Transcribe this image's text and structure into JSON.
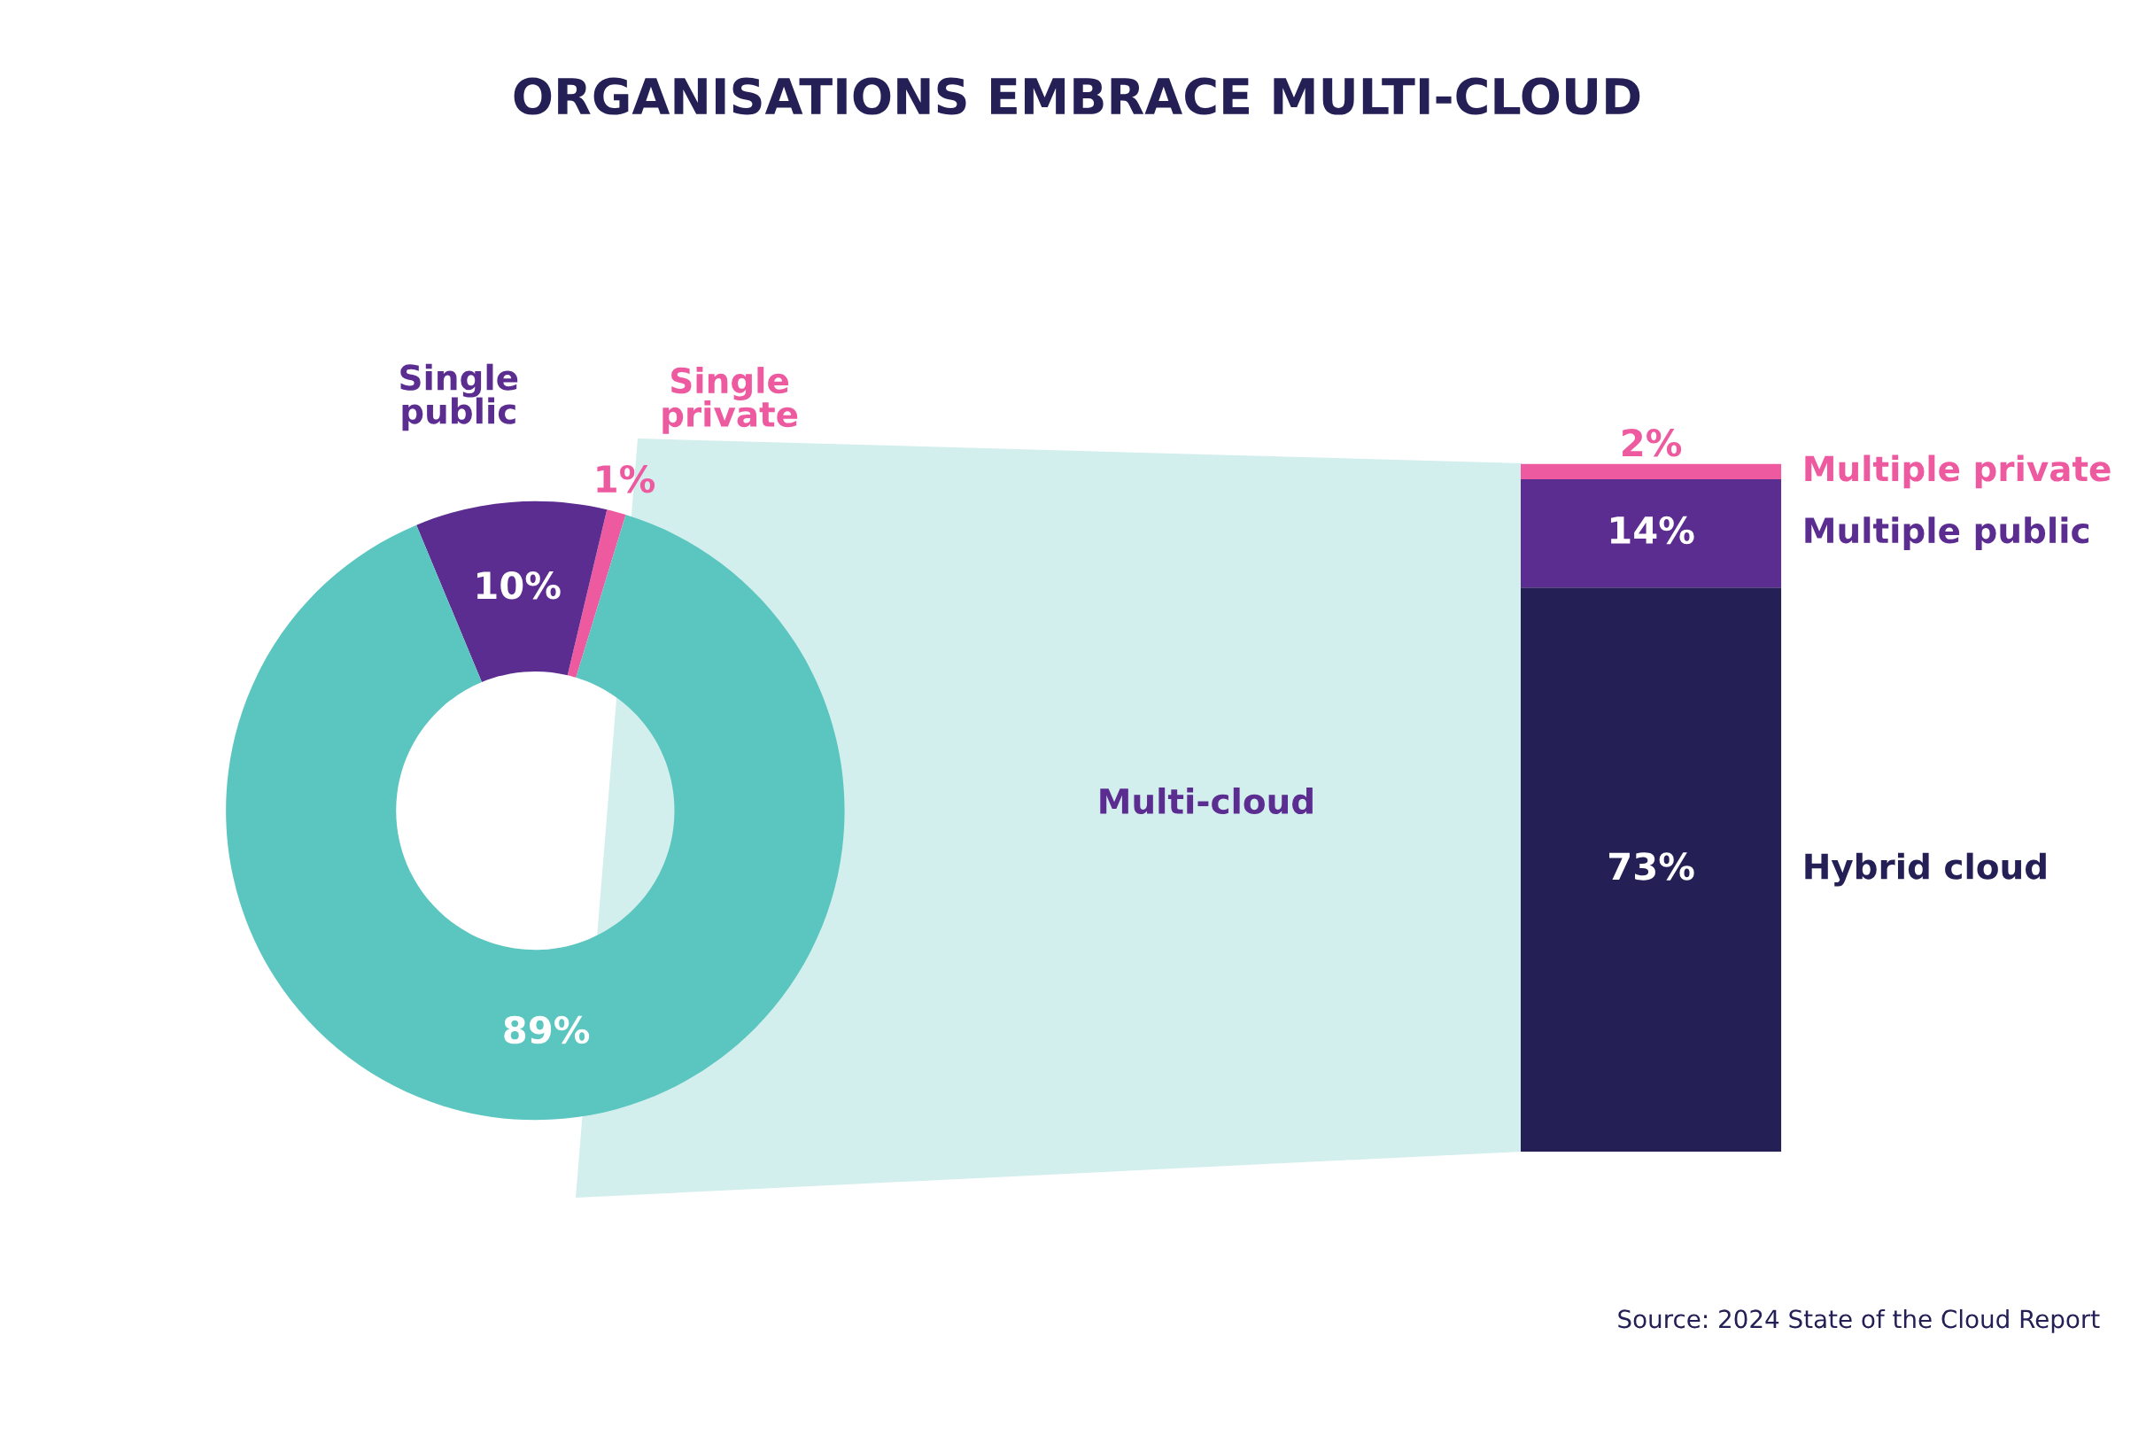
{
  "chart_data": [
    {
      "type": "donut",
      "title": "ORGANISATIONS EMBRACE MULTI-CLOUD",
      "categories": [
        "Single private",
        "Single public",
        "Multi-cloud"
      ],
      "values": [
        1,
        10,
        89
      ],
      "colors": [
        "#ee5a9f",
        "#5c2d91",
        "#5bc5bf"
      ],
      "value_labels": [
        "1%",
        "10%",
        "89%"
      ]
    },
    {
      "type": "bar",
      "stacked": true,
      "categories": [
        null
      ],
      "series": [
        {
          "name": "Hybrid cloud",
          "color": "#241f55",
          "values": [
            73
          ],
          "value_labels": [
            "73%"
          ]
        },
        {
          "name": "Multiple public",
          "color": "#5c2d91",
          "values": [
            14
          ],
          "value_labels": [
            "14%"
          ]
        },
        {
          "name": "Multiple private",
          "color": "#ee5a9f",
          "values": [
            2
          ],
          "value_labels": [
            "2%"
          ]
        }
      ],
      "annotations": [
        "Source: 2024 State of the Cloud Report"
      ]
    }
  ]
}
